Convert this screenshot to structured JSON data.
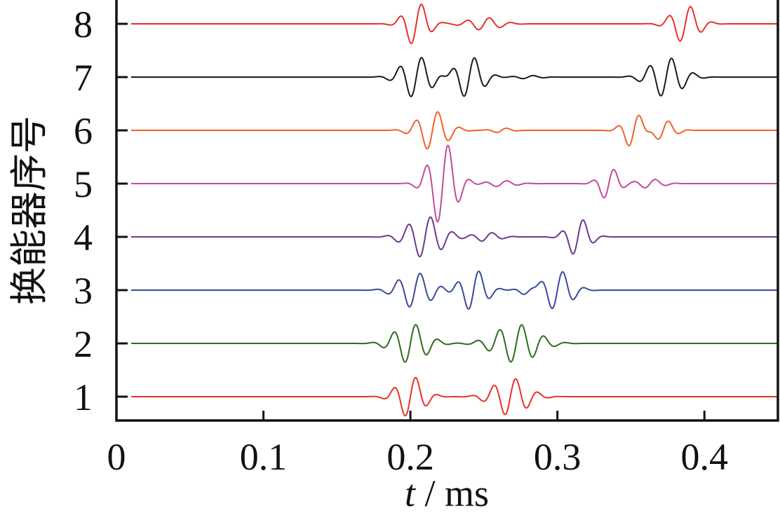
{
  "chart_data": {
    "type": "line",
    "title": "",
    "xlabel_var": "t",
    "xlabel_sep": " / ",
    "xlabel_unit": "ms",
    "ylabel": "换能器序号",
    "xlim": [
      0,
      0.45
    ],
    "x_ticks": [
      0,
      0.1,
      0.2,
      0.3,
      0.4
    ],
    "x_tick_labels": [
      "0",
      "0.1",
      "0.2",
      "0.3",
      "0.4"
    ],
    "y_tick_labels": [
      "1",
      "2",
      "3",
      "4",
      "5",
      "6",
      "7",
      "8"
    ],
    "grid": false,
    "legend": "none",
    "series": [
      {
        "label": "1",
        "color": "#e8312a",
        "amp": 0.46,
        "bursts": [
          {
            "t0": 0.2,
            "w": 0.0085,
            "a": 1.0,
            "f": 66
          },
          {
            "t0": 0.268,
            "w": 0.011,
            "a": 0.9,
            "f": 66
          }
        ]
      },
      {
        "label": "2",
        "color": "#2f6b1f",
        "amp": 0.46,
        "bursts": [
          {
            "t0": 0.2,
            "w": 0.0105,
            "a": 0.95,
            "f": 66
          },
          {
            "t0": 0.272,
            "w": 0.0135,
            "a": 0.92,
            "f": 66
          }
        ]
      },
      {
        "label": "3",
        "color": "#3a4a9a",
        "amp": 0.46,
        "bursts": [
          {
            "t0": 0.203,
            "w": 0.0105,
            "a": 0.85,
            "f": 66
          },
          {
            "t0": 0.243,
            "w": 0.008,
            "a": 1.0,
            "f": 66
          },
          {
            "t0": 0.28,
            "w": 0.0055,
            "a": 0.25,
            "f": 66
          },
          {
            "t0": 0.3,
            "w": 0.009,
            "a": 0.95,
            "f": 66
          }
        ]
      },
      {
        "label": "4",
        "color": "#6a3a8c",
        "amp": 0.46,
        "bursts": [
          {
            "t0": 0.21,
            "w": 0.011,
            "a": 1.0,
            "f": 66
          },
          {
            "t0": 0.252,
            "w": 0.008,
            "a": 0.22,
            "f": 66
          },
          {
            "t0": 0.314,
            "w": 0.007,
            "a": 0.92,
            "f": 66
          }
        ]
      },
      {
        "label": "5",
        "color": "#c44a9a",
        "amp": 0.46,
        "bursts": [
          {
            "t0": 0.222,
            "w": 0.0085,
            "a": 2.0,
            "f": 66
          },
          {
            "t0": 0.262,
            "w": 0.009,
            "a": 0.15,
            "f": 66
          },
          {
            "t0": 0.335,
            "w": 0.006,
            "a": 0.8,
            "f": 66
          },
          {
            "t0": 0.363,
            "w": 0.008,
            "a": 0.22,
            "f": 66
          }
        ]
      },
      {
        "label": "6",
        "color": "#f0622a",
        "amp": 0.46,
        "bursts": [
          {
            "t0": 0.215,
            "w": 0.0095,
            "a": 0.95,
            "f": 66
          },
          {
            "t0": 0.262,
            "w": 0.006,
            "a": 0.12,
            "f": 66
          },
          {
            "t0": 0.352,
            "w": 0.0065,
            "a": 0.85,
            "f": 66
          },
          {
            "t0": 0.372,
            "w": 0.007,
            "a": 0.5,
            "f": 66
          }
        ]
      },
      {
        "label": "7",
        "color": "#1a1a1a",
        "amp": 0.46,
        "bursts": [
          {
            "t0": 0.204,
            "w": 0.0095,
            "a": 1.0,
            "f": 66
          },
          {
            "t0": 0.24,
            "w": 0.0085,
            "a": 1.0,
            "f": 66
          },
          {
            "t0": 0.28,
            "w": 0.008,
            "a": 0.08,
            "f": 66
          },
          {
            "t0": 0.374,
            "w": 0.0105,
            "a": 0.95,
            "f": 66
          }
        ]
      },
      {
        "label": "8",
        "color": "#e8312a",
        "amp": 0.46,
        "bursts": [
          {
            "t0": 0.204,
            "w": 0.0075,
            "a": 1.05,
            "f": 66
          },
          {
            "t0": 0.25,
            "w": 0.0105,
            "a": 0.3,
            "f": 66
          },
          {
            "t0": 0.387,
            "w": 0.0085,
            "a": 0.9,
            "f": 66
          }
        ]
      }
    ]
  }
}
